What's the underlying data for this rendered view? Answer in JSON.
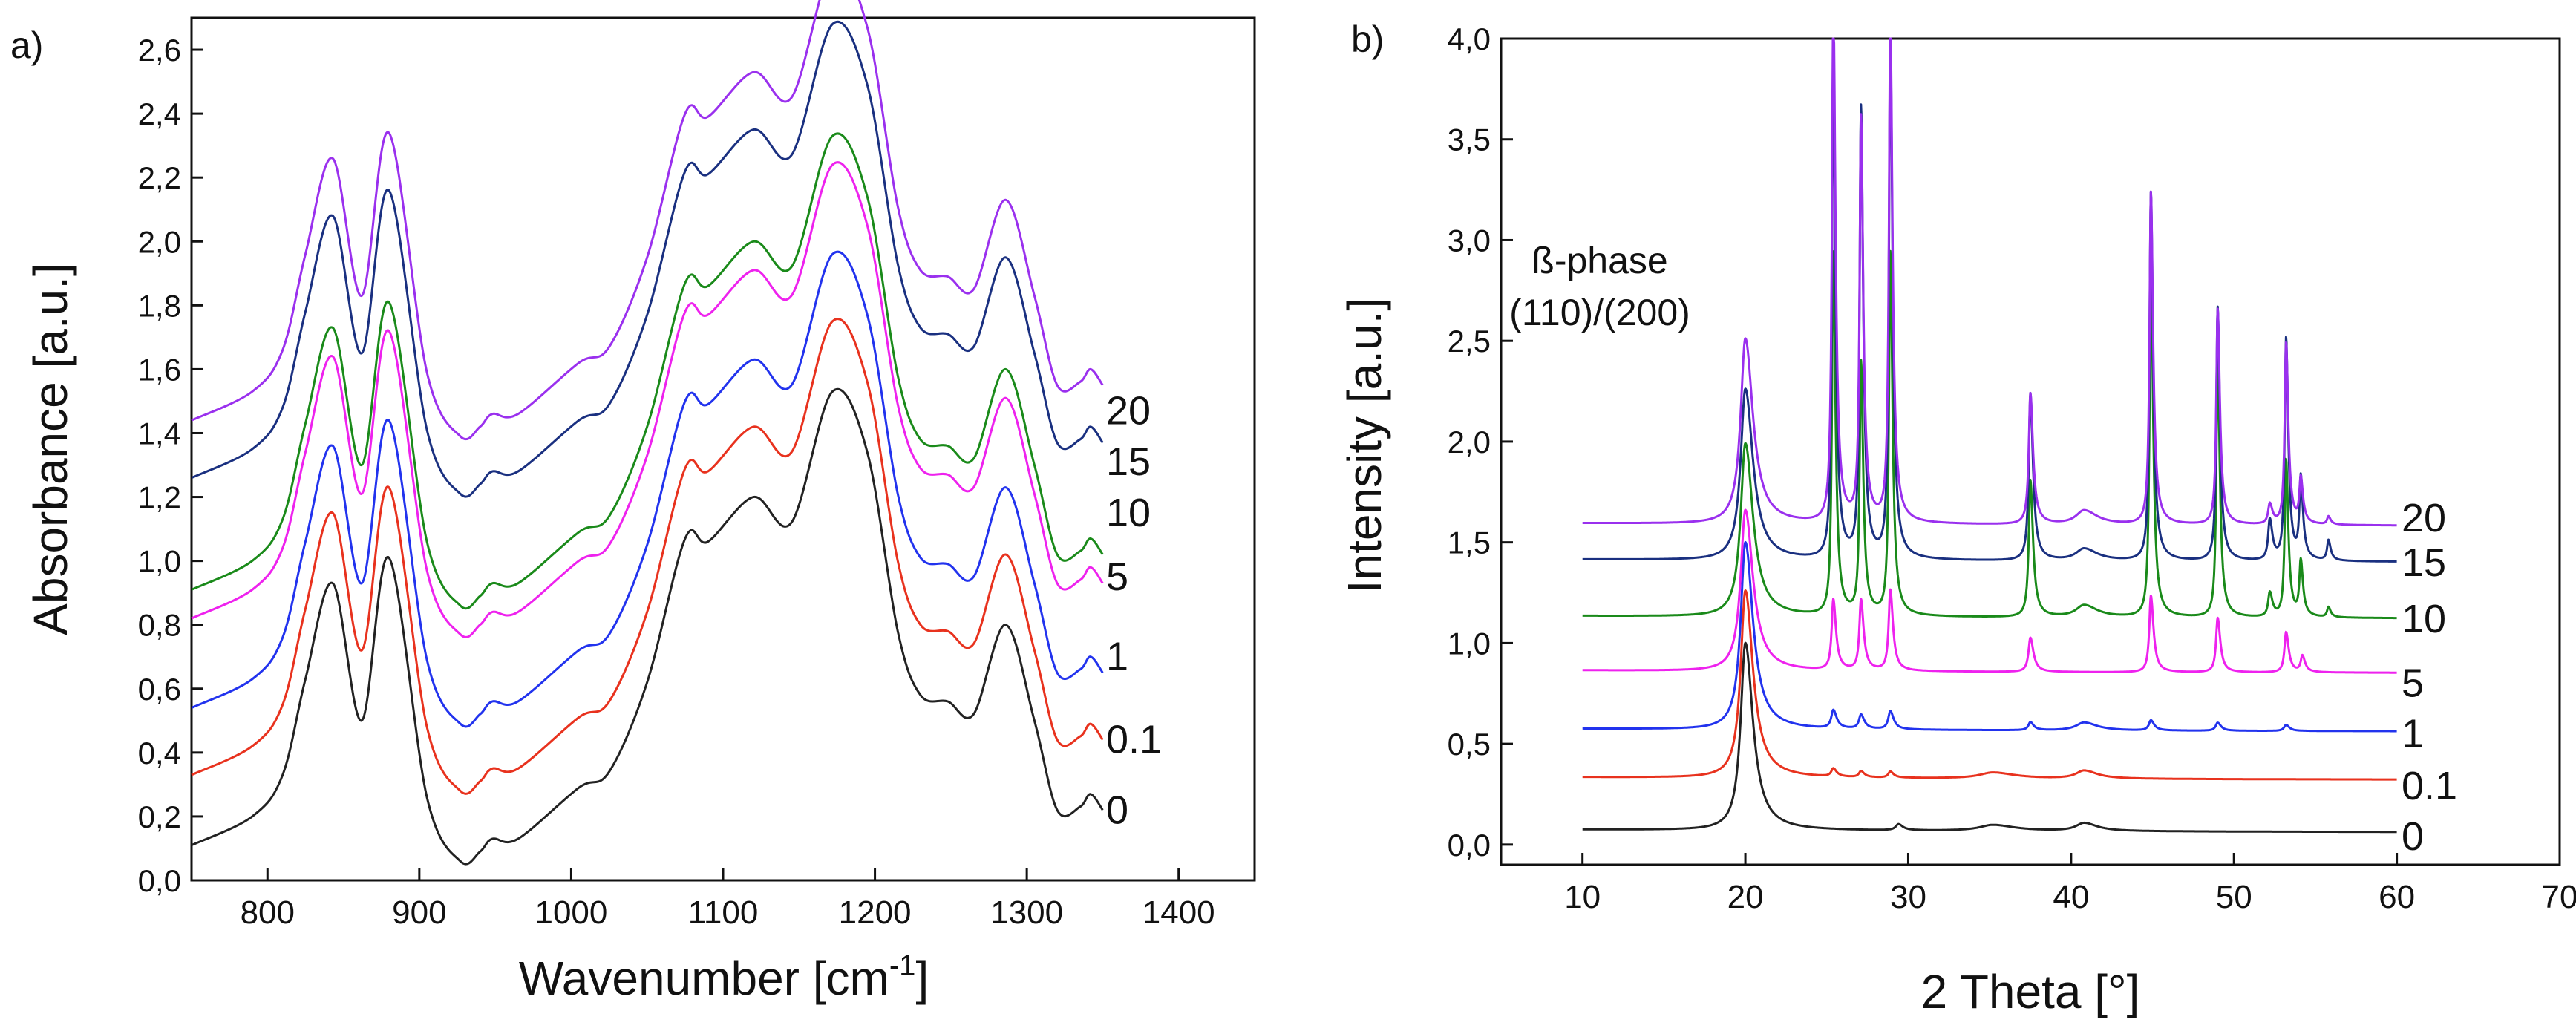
{
  "chart_data": [
    {
      "panel_label": "a)",
      "type": "line",
      "title": "",
      "xlabel_main": "Wavenumber [cm",
      "xlabel_sup": "-1",
      "xlabel_close": "]",
      "ylabel": "Absorbance [a.u.]",
      "xlim": [
        750,
        1450
      ],
      "ylim": [
        0.0,
        2.7
      ],
      "xticks": [
        800,
        900,
        1000,
        1100,
        1200,
        1300,
        1400
      ],
      "xtick_labels": [
        "800",
        "900",
        "1000",
        "1100",
        "1200",
        "1300",
        "1400"
      ],
      "yticks": [
        0.0,
        0.2,
        0.4,
        0.6,
        0.8,
        1.0,
        1.2,
        1.4,
        1.6,
        1.8,
        2.0,
        2.2,
        2.4,
        2.6
      ],
      "ytick_labels": [
        "0,0",
        "0,2",
        "0,4",
        "0,6",
        "0,8",
        "1,0",
        "1,2",
        "1,4",
        "1,6",
        "1,8",
        "2,0",
        "2,2",
        "2,4",
        "2,6"
      ],
      "grid": false,
      "base_curve": {
        "x": [
          750,
          790,
          810,
          825,
          843,
          862,
          880,
          905,
          927,
          940,
          948,
          965,
          1005,
          1025,
          1050,
          1075,
          1090,
          1120,
          1145,
          1172,
          1195,
          1215,
          1230,
          1248,
          1265,
          1286,
          1305,
          1320,
          1335,
          1342,
          1350
        ],
        "y": [
          0.11,
          0.2,
          0.33,
          0.63,
          0.93,
          0.5,
          1.01,
          0.26,
          0.06,
          0.09,
          0.13,
          0.13,
          0.29,
          0.34,
          0.62,
          1.07,
          1.06,
          1.2,
          1.12,
          1.53,
          1.34,
          0.78,
          0.58,
          0.56,
          0.52,
          0.8,
          0.5,
          0.22,
          0.23,
          0.27,
          0.22
        ]
      },
      "series": [
        {
          "name": "0",
          "offset": 0.0,
          "color": "#222222",
          "label_y": 0.22
        },
        {
          "name": "0.1",
          "offset": 0.22,
          "color": "#e8321e",
          "label_y": 0.44
        },
        {
          "name": "1",
          "offset": 0.43,
          "color": "#2233ee",
          "label_y": 0.7
        },
        {
          "name": "5",
          "offset": 0.71,
          "color": "#ee22ee",
          "label_y": 0.95
        },
        {
          "name": "10",
          "offset": 0.8,
          "color": "#1a8a1a",
          "label_y": 1.15
        },
        {
          "name": "15",
          "offset": 1.15,
          "color": "#1a3080",
          "label_y": 1.31
        },
        {
          "name": "20",
          "offset": 1.33,
          "color": "#9a30ee",
          "label_y": 1.47
        }
      ]
    },
    {
      "panel_label": "b)",
      "type": "line",
      "title": "",
      "xlabel": "2 Theta [°]",
      "ylabel": "Intensity [a.u.]",
      "xlim": [
        5,
        70
      ],
      "ylim": [
        -0.1,
        4.0
      ],
      "xticks": [
        10,
        20,
        30,
        40,
        50,
        60,
        70
      ],
      "xtick_labels": [
        "10",
        "20",
        "30",
        "40",
        "50",
        "60",
        "70"
      ],
      "yticks": [
        0.0,
        0.5,
        1.0,
        1.5,
        2.0,
        2.5,
        3.0,
        3.5,
        4.0
      ],
      "ytick_labels": [
        "0,0",
        "0,5",
        "1,0",
        "1,5",
        "2,0",
        "2,5",
        "3,0",
        "3,5",
        "4,0"
      ],
      "grid": false,
      "annotation_lines": [
        "ß-phase",
        "(110)/(200)"
      ],
      "x_range": [
        10,
        60
      ],
      "series": [
        {
          "name": "0",
          "color": "#222222",
          "baseline": 0.06,
          "label_y": 0.04,
          "peaks": [
            [
              20.0,
              0.93,
              0.35
            ],
            [
              29.4,
              0.03,
              0.2
            ],
            [
              35.2,
              0.03,
              1.0
            ],
            [
              40.8,
              0.04,
              0.6
            ]
          ]
        },
        {
          "name": "0.1",
          "color": "#e8321e",
          "baseline": 0.32,
          "label_y": 0.29,
          "peaks": [
            [
              20.0,
              0.93,
              0.35
            ],
            [
              25.4,
              0.04,
              0.15
            ],
            [
              27.1,
              0.03,
              0.15
            ],
            [
              28.9,
              0.03,
              0.15
            ],
            [
              35.2,
              0.03,
              1.0
            ],
            [
              40.8,
              0.04,
              0.6
            ]
          ]
        },
        {
          "name": "1",
          "color": "#2233ee",
          "baseline": 0.56,
          "label_y": 0.55,
          "peaks": [
            [
              20.0,
              0.93,
              0.35
            ],
            [
              25.4,
              0.09,
              0.15
            ],
            [
              27.1,
              0.07,
              0.15
            ],
            [
              28.9,
              0.09,
              0.15
            ],
            [
              37.5,
              0.04,
              0.15
            ],
            [
              40.8,
              0.04,
              0.6
            ],
            [
              44.9,
              0.05,
              0.15
            ],
            [
              49.0,
              0.04,
              0.15
            ],
            [
              53.2,
              0.03,
              0.15
            ]
          ]
        },
        {
          "name": "5",
          "color": "#ee22ee",
          "baseline": 0.85,
          "label_y": 0.8,
          "peaks": [
            [
              20.0,
              0.8,
              0.35
            ],
            [
              25.4,
              0.35,
              0.12
            ],
            [
              27.1,
              0.35,
              0.12
            ],
            [
              28.9,
              0.4,
              0.12
            ],
            [
              37.5,
              0.17,
              0.14
            ],
            [
              44.9,
              0.38,
              0.12
            ],
            [
              49.0,
              0.27,
              0.12
            ],
            [
              53.2,
              0.2,
              0.12
            ],
            [
              54.2,
              0.08,
              0.12
            ]
          ]
        },
        {
          "name": "10",
          "color": "#1a8a1a",
          "baseline": 1.12,
          "label_y": 1.12,
          "peaks": [
            [
              20.0,
              0.86,
              0.35
            ],
            [
              25.4,
              1.8,
              0.1
            ],
            [
              27.1,
              1.25,
              0.1
            ],
            [
              28.9,
              1.8,
              0.1
            ],
            [
              37.5,
              0.68,
              0.12
            ],
            [
              40.8,
              0.06,
              0.6
            ],
            [
              44.9,
              1.78,
              0.1
            ],
            [
              49.0,
              1.26,
              0.1
            ],
            [
              52.2,
              0.12,
              0.12
            ],
            [
              53.2,
              0.78,
              0.1
            ],
            [
              54.1,
              0.27,
              0.1
            ],
            [
              55.8,
              0.05,
              0.1
            ]
          ]
        },
        {
          "name": "15",
          "color": "#1a3080",
          "baseline": 1.4,
          "label_y": 1.4,
          "peaks": [
            [
              20.0,
              0.85,
              0.35
            ],
            [
              25.4,
              2.4,
              0.1
            ],
            [
              27.1,
              2.23,
              0.1
            ],
            [
              28.9,
              2.6,
              0.1
            ],
            [
              37.5,
              0.83,
              0.12
            ],
            [
              40.8,
              0.06,
              0.6
            ],
            [
              44.9,
              1.83,
              0.1
            ],
            [
              49.0,
              1.26,
              0.1
            ],
            [
              52.2,
              0.2,
              0.12
            ],
            [
              53.2,
              1.1,
              0.1
            ],
            [
              54.1,
              0.4,
              0.1
            ],
            [
              55.8,
              0.1,
              0.1
            ]
          ]
        },
        {
          "name": "20",
          "color": "#9a30ee",
          "baseline": 1.58,
          "label_y": 1.62,
          "peaks": [
            [
              20.0,
              0.92,
              0.35
            ],
            [
              25.4,
              2.6,
              0.1
            ],
            [
              27.1,
              2.0,
              0.1
            ],
            [
              28.9,
              2.5,
              0.1
            ],
            [
              37.5,
              0.65,
              0.12
            ],
            [
              40.8,
              0.07,
              0.6
            ],
            [
              44.9,
              1.65,
              0.1
            ],
            [
              49.0,
              1.07,
              0.1
            ],
            [
              52.2,
              0.1,
              0.12
            ],
            [
              53.2,
              0.9,
              0.1
            ],
            [
              54.1,
              0.22,
              0.1
            ],
            [
              55.8,
              0.04,
              0.1
            ]
          ]
        }
      ]
    }
  ]
}
